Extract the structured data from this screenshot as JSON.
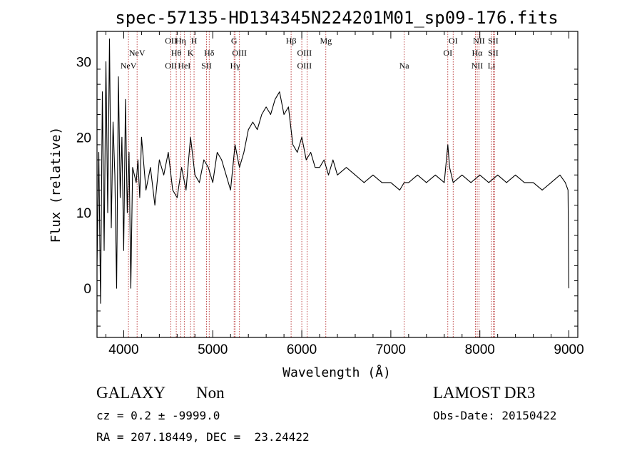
{
  "chart_data": {
    "type": "line",
    "title": "spec-57135-HD134345N224201M01_sp09-176.fits",
    "xlabel": "Wavelength (Å)",
    "ylabel": "Flux (relative)",
    "xlim": [
      3700,
      9100
    ],
    "ylim": [
      -6.5,
      34
    ],
    "xticks": [
      4000,
      5000,
      6000,
      7000,
      8000,
      9000
    ],
    "yticks": [
      0,
      10,
      20,
      30
    ],
    "grid": false,
    "series": [
      {
        "name": "spectrum",
        "x": [
          3700,
          3720,
          3740,
          3760,
          3780,
          3800,
          3820,
          3840,
          3860,
          3880,
          3900,
          3920,
          3940,
          3960,
          3980,
          4000,
          4020,
          4040,
          4060,
          4080,
          4100,
          4120,
          4140,
          4160,
          4180,
          4200,
          4250,
          4300,
          4350,
          4400,
          4450,
          4500,
          4550,
          4600,
          4650,
          4700,
          4750,
          4800,
          4850,
          4900,
          4950,
          5000,
          5050,
          5100,
          5150,
          5200,
          5250,
          5300,
          5350,
          5400,
          5450,
          5500,
          5550,
          5600,
          5650,
          5700,
          5750,
          5800,
          5850,
          5870,
          5900,
          5950,
          6000,
          6050,
          6100,
          6150,
          6200,
          6250,
          6300,
          6350,
          6400,
          6500,
          6600,
          6700,
          6800,
          6900,
          7000,
          7100,
          7150,
          7200,
          7300,
          7400,
          7500,
          7600,
          7640,
          7660,
          7700,
          7800,
          7900,
          8000,
          8100,
          8200,
          8300,
          8400,
          8500,
          8600,
          8700,
          8800,
          8900,
          8960,
          8990,
          9000
        ],
        "y": [
          3,
          18,
          -2,
          26,
          5,
          30,
          10,
          33,
          8,
          22,
          15,
          0,
          28,
          12,
          20,
          5,
          25,
          10,
          18,
          0,
          16,
          15,
          14,
          17,
          12,
          20,
          13,
          16,
          11,
          17,
          15,
          18,
          13,
          12,
          16,
          13,
          20,
          15,
          14,
          17,
          16,
          14,
          18,
          17,
          15,
          13,
          19,
          16,
          18,
          21,
          22,
          21,
          23,
          24,
          23,
          25,
          26,
          23,
          24,
          22,
          19,
          18,
          20,
          17,
          18,
          16,
          16,
          17,
          15,
          17,
          15,
          16,
          15,
          14,
          15,
          14,
          14,
          13,
          14,
          14,
          15,
          14,
          15,
          14,
          19,
          16,
          14,
          15,
          14,
          15,
          14,
          15,
          14,
          15,
          14,
          14,
          13,
          14,
          15,
          14,
          13,
          0
        ]
      }
    ],
    "lines": [
      {
        "w": 4053,
        "label": "NeV",
        "row": 2,
        "dx": 0
      },
      {
        "w": 4150,
        "label": "NeV",
        "row": 1,
        "dx": 0
      },
      {
        "w": 4530,
        "label": "OII",
        "row": 0,
        "dx": 0
      },
      {
        "w": 4530,
        "label": "OII",
        "row": 2,
        "dx": 0
      },
      {
        "w": 4640,
        "label": "Hη",
        "row": 0,
        "dx": 0
      },
      {
        "w": 4590,
        "label": "Hθ",
        "row": 1,
        "dx": 0
      },
      {
        "w": 4680,
        "label": "HeI",
        "row": 2,
        "dx": 0
      },
      {
        "w": 4750,
        "label": "K",
        "row": 1,
        "dx": 0
      },
      {
        "w": 4790,
        "label": "H",
        "row": 0,
        "dx": 0
      },
      {
        "w": 4960,
        "label": "Hδ",
        "row": 1,
        "dx": 0
      },
      {
        "w": 4930,
        "label": "SII",
        "row": 2,
        "dx": 0
      },
      {
        "w": 5240,
        "label": "G",
        "row": 0,
        "dx": 0
      },
      {
        "w": 5300,
        "label": "OIII",
        "row": 1,
        "dx": 0
      },
      {
        "w": 5250,
        "label": "Hγ",
        "row": 2,
        "dx": 0
      },
      {
        "w": 5880,
        "label": "Hβ",
        "row": 0,
        "dx": 0
      },
      {
        "w": 6030,
        "label": "OIII",
        "row": 1,
        "dx": 0
      },
      {
        "w": 6030,
        "label": "OIII",
        "row": 2,
        "dx": 0
      },
      {
        "w": 6270,
        "label": "Mg",
        "row": 0,
        "dx": 0
      },
      {
        "w": 7150,
        "label": "Na",
        "row": 2,
        "dx": 0
      },
      {
        "w": 7700,
        "label": "OI",
        "row": 0,
        "dx": 0
      },
      {
        "w": 7640,
        "label": "OI",
        "row": 1,
        "dx": 0
      },
      {
        "w": 7990,
        "label": "NII",
        "row": 0,
        "dx": 0
      },
      {
        "w": 7970,
        "label": "Hα",
        "row": 1,
        "dx": 0
      },
      {
        "w": 7970,
        "label": "NII",
        "row": 2,
        "dx": 0
      },
      {
        "w": 8150,
        "label": "SII",
        "row": 0,
        "dx": 0
      },
      {
        "w": 8150,
        "label": "SII",
        "row": 1,
        "dx": 0
      },
      {
        "w": 8130,
        "label": "Li",
        "row": 2,
        "dx": 0
      }
    ],
    "line_positions": [
      4053,
      4150,
      4530,
      4590,
      4640,
      4680,
      4750,
      4790,
      4930,
      4960,
      5240,
      5250,
      5300,
      5880,
      6000,
      6060,
      6270,
      7150,
      7640,
      7700,
      7950,
      7970,
      7990,
      8130,
      8150,
      8165
    ]
  },
  "footer": {
    "class_label": "GALAXY",
    "subclass_label": "Non",
    "redshift_text": "cz = 0.2 ± -9999.0",
    "coords_text": "RA = 207.18449, DEC =  23.24422",
    "survey_label": "LAMOST DR3",
    "obs_date_text": "Obs-Date: 20150422"
  },
  "colors": {
    "axis": "#000000",
    "spectrum": "#000000",
    "line_marker": "#b22222"
  }
}
